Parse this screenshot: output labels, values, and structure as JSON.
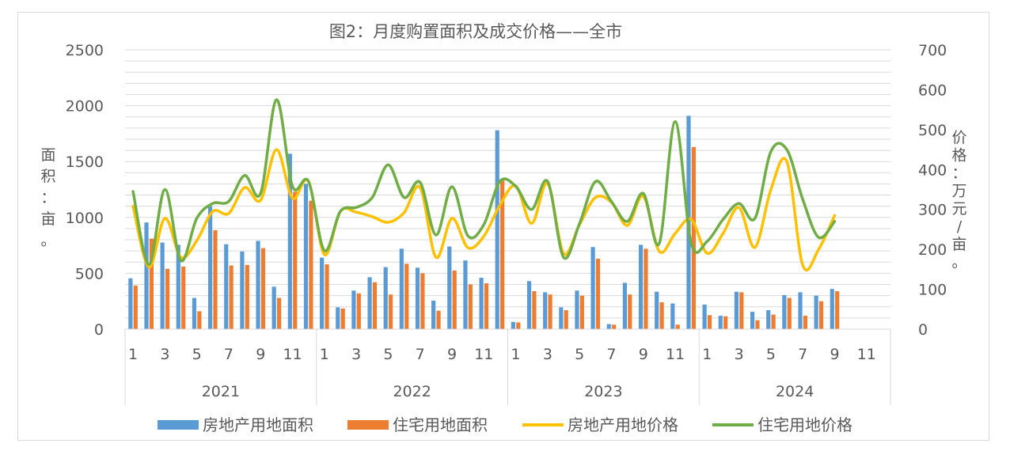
{
  "chart_data": {
    "type": "bar",
    "title": "图2：月度购置面积及成交价格——全市",
    "ylabel": "面积：亩。",
    "y2label": "价格：万元/亩。",
    "ylim": [
      0,
      2500
    ],
    "y2lim": [
      0,
      700
    ],
    "y_ticks": [
      "0",
      "500",
      "1000",
      "1500",
      "2000",
      "2500"
    ],
    "y2_ticks": [
      "0",
      "100",
      "200",
      "300",
      "400",
      "500",
      "600",
      "700"
    ],
    "grid": true,
    "legend_position": "bottom",
    "month_tick_labels": [
      "1",
      "3",
      "5",
      "7",
      "9",
      "11"
    ],
    "years": [
      "2021",
      "2022",
      "2023",
      "2024"
    ],
    "months_per_year": 12,
    "series": [
      {
        "name": "房地产用地面积",
        "kind": "bar",
        "axis": "left",
        "color": "#5B9BD5",
        "values": [
          455,
          955,
          775,
          755,
          280,
          1100,
          760,
          695,
          790,
          380,
          1570,
          1300,
          640,
          195,
          345,
          465,
          555,
          720,
          550,
          255,
          740,
          615,
          460,
          1780,
          65,
          430,
          330,
          195,
          345,
          735,
          45,
          415,
          755,
          335,
          230,
          1910,
          220,
          120,
          335,
          155,
          170,
          305,
          330,
          300,
          360,
          null,
          null,
          null
        ]
      },
      {
        "name": "住宅用地面积",
        "kind": "bar",
        "axis": "left",
        "color": "#ED7D31",
        "values": [
          390,
          810,
          540,
          560,
          160,
          885,
          570,
          575,
          725,
          280,
          1230,
          1150,
          580,
          185,
          320,
          420,
          310,
          585,
          500,
          165,
          525,
          400,
          410,
          1330,
          60,
          340,
          310,
          170,
          300,
          630,
          40,
          310,
          720,
          240,
          40,
          1630,
          125,
          115,
          330,
          80,
          130,
          280,
          120,
          250,
          340,
          null,
          null,
          null
        ]
      },
      {
        "name": "房地产用地价格",
        "kind": "line",
        "axis": "right",
        "color": "#FFC000",
        "values": [
          308,
          155,
          278,
          180,
          222,
          295,
          290,
          355,
          323,
          450,
          328,
          371,
          187,
          295,
          293,
          282,
          268,
          292,
          355,
          180,
          278,
          204,
          233,
          310,
          359,
          265,
          365,
          190,
          262,
          330,
          318,
          260,
          333,
          195,
          240,
          275,
          190,
          240,
          305,
          205,
          350,
          420,
          160,
          200,
          285,
          null,
          null,
          null
        ]
      },
      {
        "name": "住宅用地价格",
        "kind": "line",
        "axis": "right",
        "color": "#70AD47",
        "values": [
          345,
          162,
          350,
          172,
          278,
          315,
          320,
          385,
          340,
          575,
          358,
          370,
          197,
          295,
          305,
          330,
          412,
          330,
          368,
          236,
          357,
          234,
          262,
          370,
          358,
          300,
          370,
          180,
          265,
          370,
          320,
          270,
          340,
          215,
          520,
          215,
          220,
          275,
          315,
          278,
          445,
          450,
          325,
          230,
          270,
          null,
          null,
          null
        ]
      }
    ]
  }
}
